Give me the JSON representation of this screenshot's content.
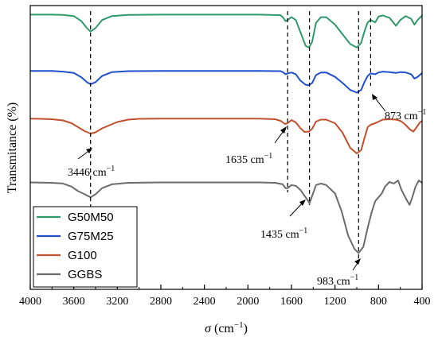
{
  "chart_data": {
    "type": "line",
    "title": "",
    "xlabel_symbol": "σ",
    "xlabel_unit": " (cm",
    "xlabel_sup": "−1",
    "xlabel_close": ")",
    "ylabel": "Transmitance (%)",
    "xlim": [
      4000,
      400
    ],
    "x_reversed": true,
    "x_ticks": [
      "4000",
      "3600",
      "3200",
      "2800",
      "2400",
      "2000",
      "1600",
      "1200",
      "800",
      "400"
    ],
    "x_tick_values": [
      4000,
      3600,
      3200,
      2800,
      2400,
      2000,
      1600,
      1200,
      800,
      400
    ],
    "y_tick_labels_shown": false,
    "grid": false,
    "legend_position": "bottom-left",
    "series": [
      {
        "name": "G50M50",
        "color": "#2e9a6b",
        "points": [
          [
            4000,
            0.5
          ],
          [
            3800,
            0.5
          ],
          [
            3700,
            1
          ],
          [
            3600,
            3
          ],
          [
            3530,
            12
          ],
          [
            3480,
            24
          ],
          [
            3446,
            30
          ],
          [
            3400,
            24
          ],
          [
            3340,
            10
          ],
          [
            3250,
            3
          ],
          [
            3100,
            1
          ],
          [
            2800,
            0.5
          ],
          [
            2200,
            0.5
          ],
          [
            1900,
            0.5
          ],
          [
            1700,
            1.5
          ],
          [
            1680,
            5
          ],
          [
            1655,
            12
          ],
          [
            1635,
            10
          ],
          [
            1600,
            5
          ],
          [
            1560,
            10
          ],
          [
            1520,
            30
          ],
          [
            1470,
            55
          ],
          [
            1440,
            58
          ],
          [
            1410,
            48
          ],
          [
            1375,
            15
          ],
          [
            1330,
            5
          ],
          [
            1280,
            5
          ],
          [
            1200,
            18
          ],
          [
            1130,
            35
          ],
          [
            1060,
            52
          ],
          [
            1000,
            58
          ],
          [
            960,
            50
          ],
          [
            930,
            30
          ],
          [
            900,
            14
          ],
          [
            873,
            10
          ],
          [
            830,
            14
          ],
          [
            800,
            4
          ],
          [
            760,
            2
          ],
          [
            700,
            6
          ],
          [
            640,
            20
          ],
          [
            600,
            10
          ],
          [
            550,
            3
          ],
          [
            500,
            8
          ],
          [
            470,
            18
          ],
          [
            440,
            10
          ],
          [
            400,
            2
          ]
        ]
      },
      {
        "name": "G75M25",
        "color": "#1f4fcc",
        "points": [
          [
            4000,
            0.5
          ],
          [
            3800,
            0.5
          ],
          [
            3700,
            2
          ],
          [
            3600,
            5
          ],
          [
            3530,
            15
          ],
          [
            3480,
            26
          ],
          [
            3446,
            31
          ],
          [
            3400,
            26
          ],
          [
            3340,
            12
          ],
          [
            3250,
            3
          ],
          [
            3100,
            1
          ],
          [
            2800,
            0.5
          ],
          [
            2200,
            0.5
          ],
          [
            1900,
            0.5
          ],
          [
            1700,
            1
          ],
          [
            1680,
            3
          ],
          [
            1655,
            8
          ],
          [
            1635,
            6
          ],
          [
            1600,
            4
          ],
          [
            1560,
            8
          ],
          [
            1520,
            22
          ],
          [
            1470,
            32
          ],
          [
            1440,
            33
          ],
          [
            1410,
            28
          ],
          [
            1375,
            10
          ],
          [
            1330,
            4
          ],
          [
            1280,
            4
          ],
          [
            1200,
            14
          ],
          [
            1130,
            28
          ],
          [
            1060,
            44
          ],
          [
            1000,
            50
          ],
          [
            960,
            44
          ],
          [
            930,
            26
          ],
          [
            900,
            12
          ],
          [
            873,
            6
          ],
          [
            830,
            8
          ],
          [
            800,
            4
          ],
          [
            760,
            2
          ],
          [
            700,
            3
          ],
          [
            640,
            5
          ],
          [
            600,
            3
          ],
          [
            550,
            4
          ],
          [
            500,
            8
          ],
          [
            470,
            18
          ],
          [
            440,
            14
          ],
          [
            400,
            5
          ]
        ]
      },
      {
        "name": "G100",
        "color": "#c0502e",
        "points": [
          [
            4000,
            0.5
          ],
          [
            3900,
            1
          ],
          [
            3800,
            2
          ],
          [
            3700,
            5
          ],
          [
            3620,
            12
          ],
          [
            3560,
            22
          ],
          [
            3500,
            32
          ],
          [
            3446,
            38
          ],
          [
            3400,
            35
          ],
          [
            3340,
            25
          ],
          [
            3280,
            18
          ],
          [
            3200,
            9
          ],
          [
            3100,
            3
          ],
          [
            3000,
            1
          ],
          [
            2800,
            0.5
          ],
          [
            2200,
            0.5
          ],
          [
            1900,
            0.5
          ],
          [
            1750,
            2
          ],
          [
            1700,
            6
          ],
          [
            1660,
            14
          ],
          [
            1635,
            12
          ],
          [
            1600,
            4
          ],
          [
            1560,
            10
          ],
          [
            1520,
            24
          ],
          [
            1480,
            34
          ],
          [
            1440,
            33
          ],
          [
            1410,
            26
          ],
          [
            1375,
            8
          ],
          [
            1330,
            3
          ],
          [
            1280,
            3
          ],
          [
            1200,
            12
          ],
          [
            1130,
            36
          ],
          [
            1060,
            74
          ],
          [
            1000,
            88
          ],
          [
            960,
            80
          ],
          [
            930,
            50
          ],
          [
            900,
            22
          ],
          [
            873,
            16
          ],
          [
            830,
            12
          ],
          [
            800,
            8
          ],
          [
            760,
            3
          ],
          [
            700,
            2
          ],
          [
            640,
            3
          ],
          [
            600,
            6
          ],
          [
            560,
            14
          ],
          [
            510,
            28
          ],
          [
            480,
            33
          ],
          [
            450,
            22
          ],
          [
            420,
            10
          ],
          [
            400,
            6
          ]
        ]
      },
      {
        "name": "GGBS",
        "color": "#6b6b6b",
        "points": [
          [
            4000,
            0.5
          ],
          [
            3800,
            1
          ],
          [
            3700,
            2
          ],
          [
            3620,
            6
          ],
          [
            3560,
            12
          ],
          [
            3500,
            16
          ],
          [
            3446,
            20
          ],
          [
            3400,
            16
          ],
          [
            3340,
            8
          ],
          [
            3250,
            3
          ],
          [
            3100,
            1
          ],
          [
            2800,
            0.5
          ],
          [
            2200,
            0.5
          ],
          [
            1900,
            0.5
          ],
          [
            1750,
            1
          ],
          [
            1680,
            3
          ],
          [
            1655,
            8
          ],
          [
            1635,
            8
          ],
          [
            1600,
            4
          ],
          [
            1560,
            5
          ],
          [
            1520,
            10
          ],
          [
            1480,
            18
          ],
          [
            1450,
            24
          ],
          [
            1435,
            28
          ],
          [
            1410,
            18
          ],
          [
            1375,
            4
          ],
          [
            1330,
            2
          ],
          [
            1280,
            4
          ],
          [
            1200,
            15
          ],
          [
            1140,
            38
          ],
          [
            1080,
            70
          ],
          [
            1020,
            88
          ],
          [
            983,
            93
          ],
          [
            940,
            85
          ],
          [
            900,
            60
          ],
          [
            860,
            38
          ],
          [
            830,
            25
          ],
          [
            800,
            20
          ],
          [
            770,
            15
          ],
          [
            740,
            6
          ],
          [
            700,
            0
          ],
          [
            660,
            2
          ],
          [
            620,
            -2
          ],
          [
            590,
            10
          ],
          [
            540,
            24
          ],
          [
            515,
            30
          ],
          [
            490,
            20
          ],
          [
            460,
            6
          ],
          [
            430,
            -2
          ],
          [
            400,
            1
          ]
        ]
      }
    ],
    "annotations": [
      {
        "text": "3446 cm",
        "sup": "−1",
        "x": 3446
      },
      {
        "text": "1635 cm",
        "sup": "−1",
        "x": 1635
      },
      {
        "text": "1435 cm",
        "sup": "−1",
        "x": 1435
      },
      {
        "text": "983 cm",
        "sup": "−1",
        "x": 983
      },
      {
        "text": "873 cm",
        "sup": "−1",
        "x": 873
      }
    ],
    "reference_lines": [
      3446,
      1635,
      1435,
      983,
      873
    ]
  }
}
